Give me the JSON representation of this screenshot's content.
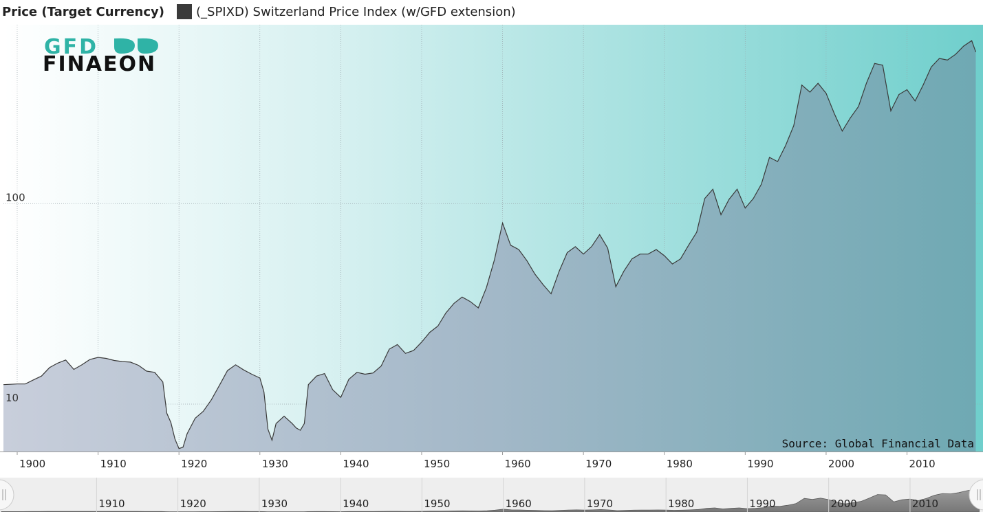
{
  "legend": {
    "title": "Price (Target Currency)",
    "series_label": "(_SPIXD) Switzerland Price Index (w/GFD extension)",
    "swatch_color": "#3a3a3a"
  },
  "logo": {
    "line1": "GFD",
    "line2": "FINAEON"
  },
  "source": "Source: Global Financial Data",
  "chart_data": {
    "type": "area",
    "yscale": "log",
    "ylim": [
      5.8,
      780
    ],
    "xlim": [
      1898.3,
      2018.8
    ],
    "y_ticks": [
      {
        "value": 10,
        "label": "10"
      },
      {
        "value": 100,
        "label": "100"
      }
    ],
    "x_ticks": [
      {
        "value": 1900,
        "label": "1900"
      },
      {
        "value": 1910,
        "label": "1910"
      },
      {
        "value": 1920,
        "label": "1920"
      },
      {
        "value": 1930,
        "label": "1930"
      },
      {
        "value": 1940,
        "label": "1940"
      },
      {
        "value": 1950,
        "label": "1950"
      },
      {
        "value": 1960,
        "label": "1960"
      },
      {
        "value": 1970,
        "label": "1970"
      },
      {
        "value": 1980,
        "label": "1980"
      },
      {
        "value": 1990,
        "label": "1990"
      },
      {
        "value": 2000,
        "label": "2000"
      },
      {
        "value": 2010,
        "label": "2010"
      }
    ],
    "nav_ticks": [
      {
        "value": 1910,
        "label": "1910"
      },
      {
        "value": 1920,
        "label": "1920"
      },
      {
        "value": 1930,
        "label": "1930"
      },
      {
        "value": 1940,
        "label": "1940"
      },
      {
        "value": 1950,
        "label": "1950"
      },
      {
        "value": 1960,
        "label": "1960"
      },
      {
        "value": 1970,
        "label": "1970"
      },
      {
        "value": 1980,
        "label": "1980"
      },
      {
        "value": 1990,
        "label": "1990"
      },
      {
        "value": 2000,
        "label": "2000"
      },
      {
        "value": 2010,
        "label": "2010"
      }
    ],
    "grid": true,
    "series": [
      {
        "x": [
          1898.3,
          1900,
          1901,
          1902,
          1903,
          1904,
          1905,
          1906,
          1907,
          1908,
          1909,
          1910,
          1911,
          1912,
          1913,
          1914,
          1915,
          1916,
          1917,
          1918,
          1918.5,
          1919,
          1919.5,
          1920,
          1920.5,
          1921,
          1922,
          1923,
          1924,
          1925,
          1926,
          1927,
          1928,
          1929,
          1930,
          1930.5,
          1931,
          1931.5,
          1932,
          1933,
          1934,
          1934.5,
          1935,
          1935.5,
          1936,
          1937,
          1938,
          1939,
          1940,
          1941,
          1942,
          1943,
          1944,
          1945,
          1946,
          1947,
          1948,
          1949,
          1950,
          1951,
          1952,
          1953,
          1954,
          1955,
          1956,
          1957,
          1958,
          1959,
          1960,
          1961,
          1962,
          1963,
          1964,
          1965,
          1966,
          1967,
          1968,
          1969,
          1970,
          1971,
          1972,
          1973,
          1974,
          1975,
          1976,
          1977,
          1978,
          1979,
          1980,
          1981,
          1982,
          1983,
          1984,
          1985,
          1986,
          1987,
          1988,
          1989,
          1990,
          1991,
          1992,
          1993,
          1994,
          1995,
          1996,
          1997,
          1998,
          1999,
          2000,
          2001,
          2002,
          2003,
          2004,
          2005,
          2006,
          2007,
          2008,
          2009,
          2010,
          2011,
          2012,
          2013,
          2014,
          2015,
          2016,
          2017,
          2018,
          2018.5
        ],
        "values": [
          12.5,
          12.6,
          12.6,
          13.2,
          13.8,
          15.2,
          16.0,
          16.6,
          14.9,
          15.7,
          16.7,
          17.1,
          16.9,
          16.5,
          16.3,
          16.2,
          15.6,
          14.6,
          14.4,
          12.9,
          9.0,
          8.1,
          6.7,
          6.0,
          6.1,
          7.1,
          8.5,
          9.2,
          10.5,
          12.4,
          14.7,
          15.7,
          14.8,
          14.1,
          13.5,
          11.5,
          7.5,
          6.6,
          8.0,
          8.7,
          8.0,
          7.6,
          7.4,
          8.0,
          12.5,
          13.8,
          14.2,
          11.8,
          10.8,
          13.3,
          14.4,
          14.1,
          14.3,
          15.5,
          18.8,
          19.8,
          17.9,
          18.5,
          20.4,
          22.8,
          24.5,
          28.5,
          31.8,
          34.2,
          32.5,
          30.2,
          38.0,
          52.5,
          80.0,
          62.0,
          59.0,
          52.0,
          44.5,
          39.5,
          35.5,
          46.0,
          57.0,
          61.0,
          56.0,
          61.0,
          70.0,
          60.0,
          38.5,
          46.0,
          53.0,
          56.0,
          56.0,
          59.0,
          55.0,
          50.0,
          53.0,
          62.0,
          72.0,
          106.0,
          118.0,
          88.0,
          105.0,
          118.0,
          95.0,
          106.0,
          125.0,
          170.0,
          162.0,
          195.0,
          245.0,
          390.0,
          360.0,
          398.0,
          355.0,
          282.0,
          230.0,
          268.0,
          305.0,
          400.0,
          500.0,
          490.0,
          290.0,
          350.0,
          370.0,
          325.0,
          390.0,
          480.0,
          530.0,
          520.0,
          555.0,
          610.0,
          650.0,
          570.0
        ],
        "line_color": "#3a3a3a"
      }
    ]
  }
}
